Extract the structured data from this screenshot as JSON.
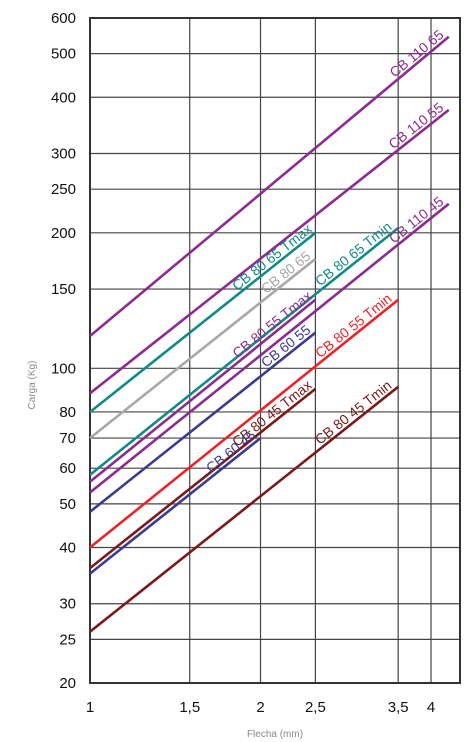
{
  "chart_data": {
    "type": "line",
    "title": "",
    "xlabel": "Flecha (mm)",
    "ylabel": "Carga (Kg)",
    "x_scale": "log",
    "y_scale": "log",
    "xlim": [
      1,
      4.5
    ],
    "ylim": [
      20,
      600
    ],
    "x_ticks": [
      {
        "value": 1,
        "label": "1"
      },
      {
        "value": 1.5,
        "label": "1,5"
      },
      {
        "value": 2,
        "label": "2"
      },
      {
        "value": 2.5,
        "label": "2,5"
      },
      {
        "value": 3.5,
        "label": "3,5"
      },
      {
        "value": 4,
        "label": "4"
      }
    ],
    "y_ticks": [
      {
        "value": 20,
        "label": "20"
      },
      {
        "value": 25,
        "label": "25"
      },
      {
        "value": 30,
        "label": "30"
      },
      {
        "value": 40,
        "label": "40"
      },
      {
        "value": 50,
        "label": "50"
      },
      {
        "value": 60,
        "label": "60"
      },
      {
        "value": 70,
        "label": "70"
      },
      {
        "value": 80,
        "label": "80"
      },
      {
        "value": 100,
        "label": "100"
      },
      {
        "value": 150,
        "label": "150"
      },
      {
        "value": 200,
        "label": "200"
      },
      {
        "value": 250,
        "label": "250"
      },
      {
        "value": 300,
        "label": "300"
      },
      {
        "value": 400,
        "label": "400"
      },
      {
        "value": 500,
        "label": "500"
      },
      {
        "value": 600,
        "label": "600"
      }
    ],
    "grid": true,
    "legend": "none",
    "series": [
      {
        "name": "CB 110 65",
        "color": "#8b2d8f",
        "x": [
          1,
          4.3
        ],
        "y": [
          118,
          545
        ]
      },
      {
        "name": "CB 110 55",
        "color": "#8b2d8f",
        "x": [
          1,
          4.3
        ],
        "y": [
          88,
          375
        ]
      },
      {
        "name": "CB 80 65 Tmax",
        "color": "#128a88",
        "x": [
          1,
          2.5
        ],
        "y": [
          80,
          200
        ]
      },
      {
        "name": "CB 80 65",
        "color": "#a8a8a8",
        "x": [
          1,
          2.5
        ],
        "y": [
          70,
          175
        ]
      },
      {
        "name": "CB 80 65 Tmin",
        "color": "#128a88",
        "x": [
          1,
          3.5
        ],
        "y": [
          58,
          205
        ]
      },
      {
        "name": "CB 110 45",
        "color": "#8b2d8f",
        "x": [
          1,
          4.3
        ],
        "y": [
          53,
          232
        ]
      },
      {
        "name": "CB 80 55 Tmax",
        "color": "#8b2d8f",
        "x": [
          1,
          2.5
        ],
        "y": [
          56,
          142
        ]
      },
      {
        "name": "CB 80 55 Tmin",
        "color": "#e8252a",
        "x": [
          1,
          3.5
        ],
        "y": [
          40,
          142
        ]
      },
      {
        "name": "CB 60 55",
        "color": "#3b3b8f",
        "x": [
          1,
          2.5
        ],
        "y": [
          48,
          120
        ]
      },
      {
        "name": "CB 80 45 Tmax",
        "color": "#7a1a1a",
        "x": [
          1,
          2.5
        ],
        "y": [
          36,
          90
        ]
      },
      {
        "name": "CB 60 45",
        "color": "#3b3b8f",
        "x": [
          1,
          2
        ],
        "y": [
          35,
          70
        ]
      },
      {
        "name": "CB 80 45 Tmin",
        "color": "#7a1a1a",
        "x": [
          1,
          3.5
        ],
        "y": [
          26,
          91
        ]
      }
    ]
  }
}
